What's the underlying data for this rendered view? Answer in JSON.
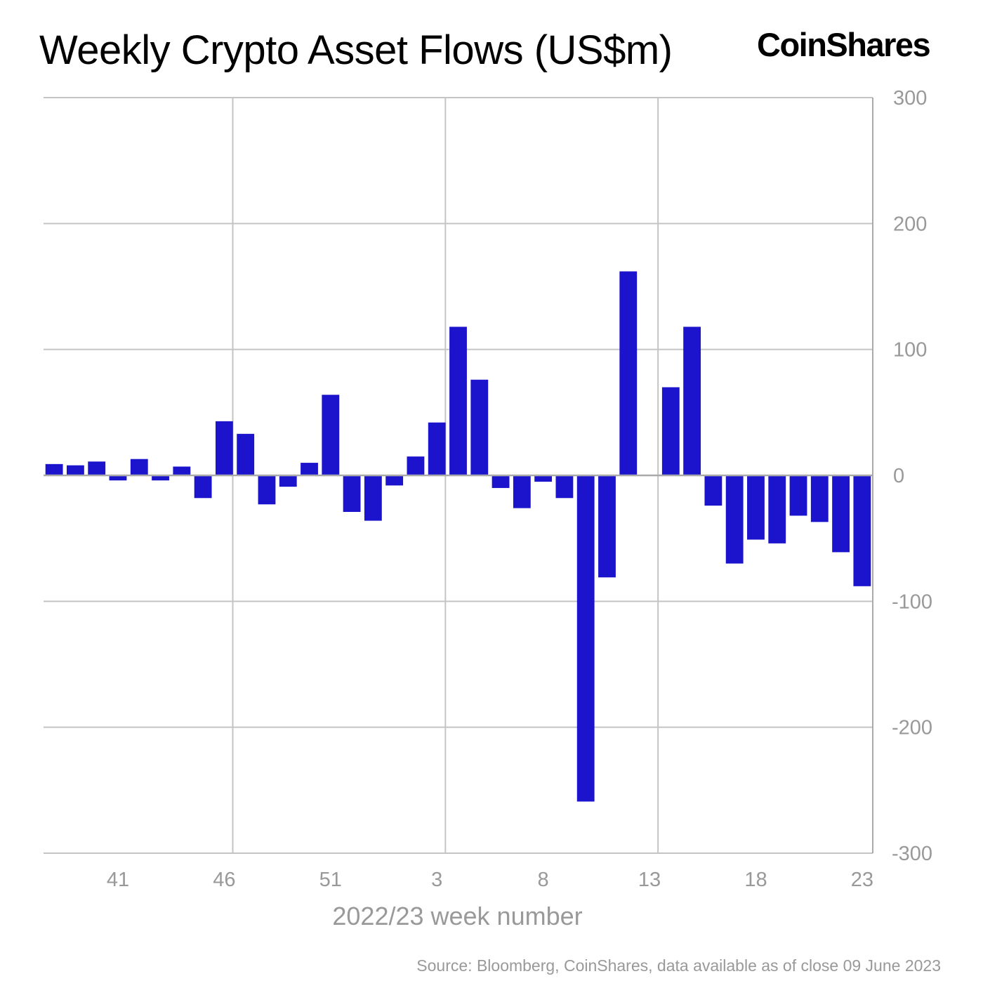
{
  "title": "Weekly Crypto Asset Flows (US$m)",
  "logo": "CoinShares",
  "source": "Source: Bloomberg, CoinShares, data available as of close 09 June 2023",
  "chart_data": {
    "type": "bar",
    "title": "Weekly Crypto Asset Flows (US$m)",
    "xlabel": "2022/23 week number",
    "ylabel": "",
    "ylim": [
      -300,
      300
    ],
    "yticks": [
      300,
      200,
      100,
      0,
      -100,
      -200,
      -300
    ],
    "y_axis_position": "right",
    "grid": true,
    "bar_color": "#1c14cc",
    "categories": [
      "38",
      "39",
      "40",
      "41",
      "42",
      "43",
      "44",
      "45",
      "46",
      "47",
      "48",
      "49",
      "50",
      "51",
      "52",
      "53",
      "1",
      "2",
      "3",
      "4",
      "5",
      "6",
      "7",
      "8",
      "9",
      "10",
      "11",
      "12",
      "13",
      "14",
      "15",
      "16",
      "17",
      "18",
      "19",
      "20",
      "21",
      "22",
      "23"
    ],
    "xtick_labels": [
      "41",
      "46",
      "51",
      "3",
      "8",
      "13",
      "18",
      "23"
    ],
    "values": [
      9,
      8,
      11,
      -4,
      13,
      -4,
      7,
      -18,
      43,
      33,
      -23,
      -9,
      10,
      64,
      -29,
      -36,
      -8,
      15,
      42,
      118,
      76,
      -10,
      -26,
      -5,
      -18,
      -259,
      -81,
      162,
      0,
      70,
      118,
      -24,
      -70,
      -51,
      -54,
      -32,
      -37,
      -61,
      -88
    ]
  }
}
